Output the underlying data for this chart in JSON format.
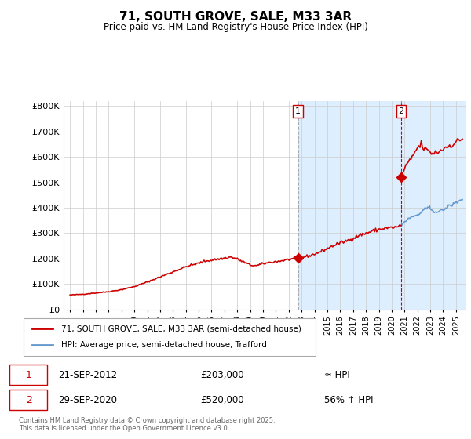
{
  "title": "71, SOUTH GROVE, SALE, M33 3AR",
  "subtitle": "Price paid vs. HM Land Registry's House Price Index (HPI)",
  "ytick_vals": [
    0,
    100000,
    200000,
    300000,
    400000,
    500000,
    600000,
    700000,
    800000
  ],
  "ylim": [
    0,
    820000
  ],
  "xlim_start": 1994.5,
  "xlim_end": 2025.8,
  "legend_line1": "71, SOUTH GROVE, SALE, M33 3AR (semi-detached house)",
  "legend_line2": "HPI: Average price, semi-detached house, Trafford",
  "transaction1_date": "21-SEP-2012",
  "transaction1_price": 203000,
  "transaction1_x": 2012.72,
  "transaction2_date": "29-SEP-2020",
  "transaction2_price": 520000,
  "transaction2_x": 2020.74,
  "footer": "Contains HM Land Registry data © Crown copyright and database right 2025.\nThis data is licensed under the Open Government Licence v3.0.",
  "red_color": "#cc0000",
  "blue_color": "#6699cc",
  "blue_fill_color": "#ddeeff",
  "grid_color": "#cccccc",
  "bg_color": "#ffffff"
}
